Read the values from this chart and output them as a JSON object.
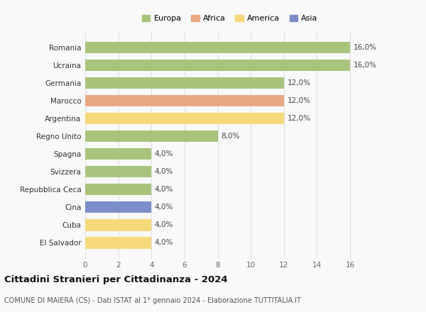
{
  "categories": [
    "El Salvador",
    "Cuba",
    "Cina",
    "Repubblica Ceca",
    "Svizzera",
    "Spagna",
    "Regno Unito",
    "Argentina",
    "Marocco",
    "Germania",
    "Ucraina",
    "Romania"
  ],
  "values": [
    4.0,
    4.0,
    4.0,
    4.0,
    4.0,
    4.0,
    8.0,
    12.0,
    12.0,
    12.0,
    16.0,
    16.0
  ],
  "continents": [
    "America",
    "America",
    "Asia",
    "Europa",
    "Europa",
    "Europa",
    "Europa",
    "America",
    "Africa",
    "Europa",
    "Europa",
    "Europa"
  ],
  "colors": {
    "Europa": "#a8c47c",
    "Africa": "#e8a882",
    "America": "#f5d97a",
    "Asia": "#7b8ec8"
  },
  "legend_order": [
    "Europa",
    "Africa",
    "America",
    "Asia"
  ],
  "title": "Cittadini Stranieri per Cittadinanza - 2024",
  "subtitle": "COMUNE DI MAIERÀ (CS) - Dati ISTAT al 1° gennaio 2024 - Elaborazione TUTTITALIA.IT",
  "xlim": [
    0,
    17.5
  ],
  "xticks": [
    0,
    2,
    4,
    6,
    8,
    10,
    12,
    14,
    16
  ],
  "background_color": "#f9f9f9",
  "grid_color": "#e0e0e0",
  "bar_height": 0.65
}
